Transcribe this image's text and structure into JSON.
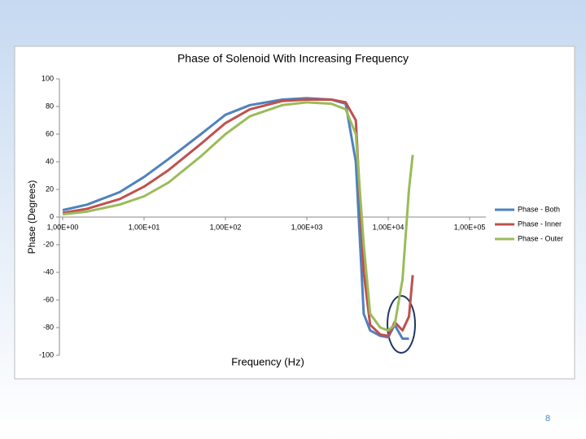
{
  "chart_data": {
    "type": "line",
    "title": "Phase of Solenoid With Increasing Frequency",
    "x_label": "Frequency (Hz)",
    "y_label": "Phase (Degrees)",
    "x": [
      1,
      2,
      5,
      10,
      20,
      50,
      100,
      200,
      500,
      1000,
      2000,
      3000,
      4000,
      5000,
      6000,
      8000,
      10000,
      12000,
      15000,
      18000,
      20000
    ],
    "series": [
      {
        "name": "Phase - Both",
        "color": "#4f81bd",
        "values": [
          5,
          9,
          18,
          29,
          42,
          60,
          74,
          81,
          85,
          86,
          85,
          82,
          40,
          -70,
          -82,
          -86,
          -87,
          -78,
          -88,
          -88,
          null
        ]
      },
      {
        "name": "Phase - Inner",
        "color": "#c0504d",
        "values": [
          3,
          6,
          13,
          22,
          34,
          53,
          68,
          78,
          84,
          85,
          85,
          83,
          70,
          -40,
          -78,
          -85,
          -86,
          -76,
          -82,
          -72,
          -42
        ]
      },
      {
        "name": "Phase - Outer",
        "color": "#9bbb59",
        "values": [
          2,
          4,
          9,
          15,
          25,
          44,
          60,
          73,
          81,
          83,
          82,
          78,
          60,
          -20,
          -70,
          -80,
          -82,
          -78,
          -45,
          20,
          45
        ]
      }
    ],
    "xscale": "log",
    "xlim": [
      1,
      100000
    ],
    "xticks": [
      {
        "value": 1,
        "label": "1,00E+00"
      },
      {
        "value": 10,
        "label": "1,00E+01"
      },
      {
        "value": 100,
        "label": "1,00E+02"
      },
      {
        "value": 1000,
        "label": "1,00E+03"
      },
      {
        "value": 10000,
        "label": "1,00E+04"
      },
      {
        "value": 100000,
        "label": "1,00E+05"
      }
    ],
    "ylim": [
      -100,
      100
    ],
    "yticks": [
      -100,
      -80,
      -60,
      -40,
      -20,
      0,
      20,
      40,
      60,
      80,
      100
    ],
    "legend": "right",
    "grid": false
  },
  "page_number": "8"
}
